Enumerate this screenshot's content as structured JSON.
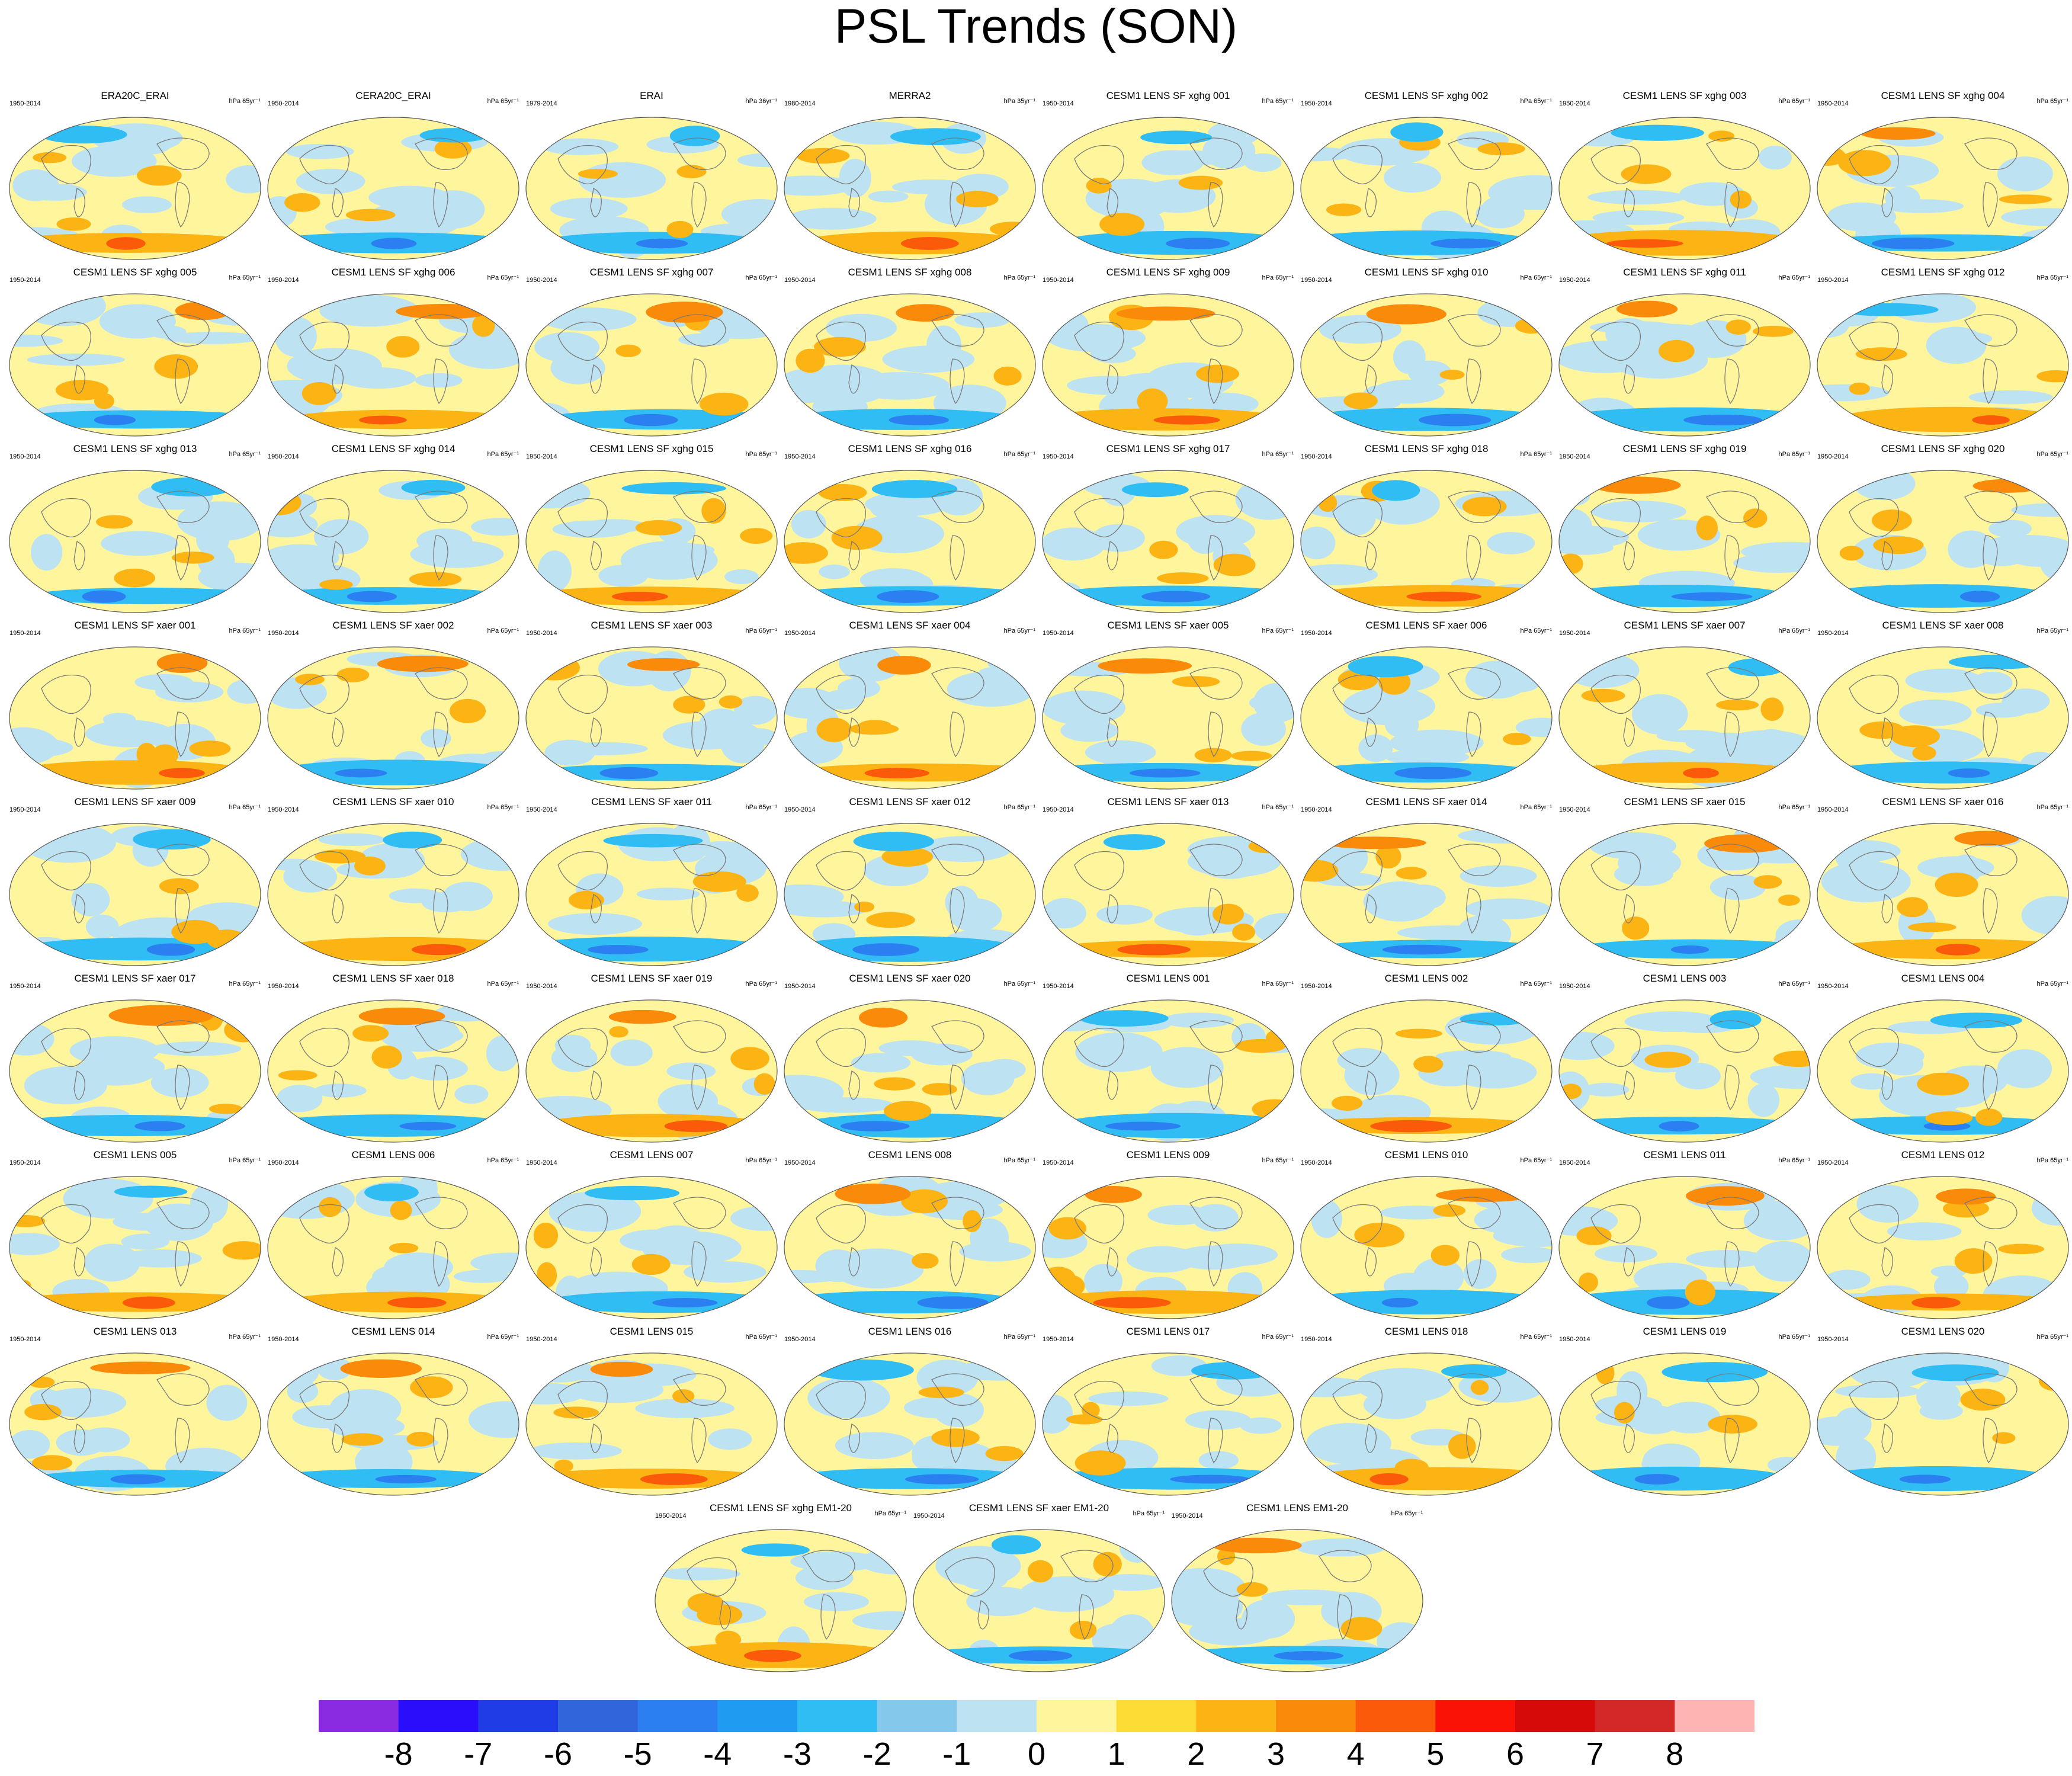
{
  "title": "PSL Trends (SON)",
  "chart_data": {
    "type": "heatmap",
    "title": "PSL Trends (SON)",
    "description_fields": [
      "name",
      "period",
      "units"
    ],
    "colorbar": {
      "labels": [
        "-8",
        "-7",
        "-6",
        "-5",
        "-4",
        "-3",
        "-2",
        "-1",
        "0",
        "1",
        "2",
        "3",
        "4",
        "5",
        "6",
        "7",
        "8"
      ],
      "colors": [
        "#8a2be2",
        "#2a0dfa",
        "#1f3ce6",
        "#3165dc",
        "#2b7ff0",
        "#1f9cf2",
        "#2fbdf3",
        "#84c9ec",
        "#bde2f2",
        "#fff59d",
        "#fcdc35",
        "#fbb414",
        "#fa8a0a",
        "#fa5a0a",
        "#fa1206",
        "#d70a0a",
        "#d32828",
        "#ffb4b4"
      ]
    },
    "panels": [
      {
        "name": "ERA20C_ERAI",
        "period": "1950-2014",
        "units": "hPa 65yr⁻¹"
      },
      {
        "name": "CERA20C_ERAI",
        "period": "1950-2014",
        "units": "hPa 65yr⁻¹"
      },
      {
        "name": "ERAI",
        "period": "1979-2014",
        "units": "hPa 36yr⁻¹"
      },
      {
        "name": "MERRA2",
        "period": "1980-2014",
        "units": "hPa 35yr⁻¹"
      },
      {
        "name": "CESM1 LENS SF xghg 001",
        "period": "1950-2014",
        "units": "hPa 65yr⁻¹"
      },
      {
        "name": "CESM1 LENS SF xghg 002",
        "period": "1950-2014",
        "units": "hPa 65yr⁻¹"
      },
      {
        "name": "CESM1 LENS SF xghg 003",
        "period": "1950-2014",
        "units": "hPa 65yr⁻¹"
      },
      {
        "name": "CESM1 LENS SF xghg 004",
        "period": "1950-2014",
        "units": "hPa 65yr⁻¹"
      },
      {
        "name": "CESM1 LENS SF xghg 005",
        "period": "1950-2014",
        "units": "hPa 65yr⁻¹"
      },
      {
        "name": "CESM1 LENS SF xghg 006",
        "period": "1950-2014",
        "units": "hPa 65yr⁻¹"
      },
      {
        "name": "CESM1 LENS SF xghg 007",
        "period": "1950-2014",
        "units": "hPa 65yr⁻¹"
      },
      {
        "name": "CESM1 LENS SF xghg 008",
        "period": "1950-2014",
        "units": "hPa 65yr⁻¹"
      },
      {
        "name": "CESM1 LENS SF xghg 009",
        "period": "1950-2014",
        "units": "hPa 65yr⁻¹"
      },
      {
        "name": "CESM1 LENS SF xghg 010",
        "period": "1950-2014",
        "units": "hPa 65yr⁻¹"
      },
      {
        "name": "CESM1 LENS SF xghg 011",
        "period": "1950-2014",
        "units": "hPa 65yr⁻¹"
      },
      {
        "name": "CESM1 LENS SF xghg 012",
        "period": "1950-2014",
        "units": "hPa 65yr⁻¹"
      },
      {
        "name": "CESM1 LENS SF xghg 013",
        "period": "1950-2014",
        "units": "hPa 65yr⁻¹"
      },
      {
        "name": "CESM1 LENS SF xghg 014",
        "period": "1950-2014",
        "units": "hPa 65yr⁻¹"
      },
      {
        "name": "CESM1 LENS SF xghg 015",
        "period": "1950-2014",
        "units": "hPa 65yr⁻¹"
      },
      {
        "name": "CESM1 LENS SF xghg 016",
        "period": "1950-2014",
        "units": "hPa 65yr⁻¹"
      },
      {
        "name": "CESM1 LENS SF xghg 017",
        "period": "1950-2014",
        "units": "hPa 65yr⁻¹"
      },
      {
        "name": "CESM1 LENS SF xghg 018",
        "period": "1950-2014",
        "units": "hPa 65yr⁻¹"
      },
      {
        "name": "CESM1 LENS SF xghg 019",
        "period": "1950-2014",
        "units": "hPa 65yr⁻¹"
      },
      {
        "name": "CESM1 LENS SF xghg 020",
        "period": "1950-2014",
        "units": "hPa 65yr⁻¹"
      },
      {
        "name": "CESM1 LENS SF xaer 001",
        "period": "1950-2014",
        "units": "hPa 65yr⁻¹"
      },
      {
        "name": "CESM1 LENS SF xaer 002",
        "period": "1950-2014",
        "units": "hPa 65yr⁻¹"
      },
      {
        "name": "CESM1 LENS SF xaer 003",
        "period": "1950-2014",
        "units": "hPa 65yr⁻¹"
      },
      {
        "name": "CESM1 LENS SF xaer 004",
        "period": "1950-2014",
        "units": "hPa 65yr⁻¹"
      },
      {
        "name": "CESM1 LENS SF xaer 005",
        "period": "1950-2014",
        "units": "hPa 65yr⁻¹"
      },
      {
        "name": "CESM1 LENS SF xaer 006",
        "period": "1950-2014",
        "units": "hPa 65yr⁻¹"
      },
      {
        "name": "CESM1 LENS SF xaer 007",
        "period": "1950-2014",
        "units": "hPa 65yr⁻¹"
      },
      {
        "name": "CESM1 LENS SF xaer 008",
        "period": "1950-2014",
        "units": "hPa 65yr⁻¹"
      },
      {
        "name": "CESM1 LENS SF xaer 009",
        "period": "1950-2014",
        "units": "hPa 65yr⁻¹"
      },
      {
        "name": "CESM1 LENS SF xaer 010",
        "period": "1950-2014",
        "units": "hPa 65yr⁻¹"
      },
      {
        "name": "CESM1 LENS SF xaer 011",
        "period": "1950-2014",
        "units": "hPa 65yr⁻¹"
      },
      {
        "name": "CESM1 LENS SF xaer 012",
        "period": "1950-2014",
        "units": "hPa 65yr⁻¹"
      },
      {
        "name": "CESM1 LENS SF xaer 013",
        "period": "1950-2014",
        "units": "hPa 65yr⁻¹"
      },
      {
        "name": "CESM1 LENS SF xaer 014",
        "period": "1950-2014",
        "units": "hPa 65yr⁻¹"
      },
      {
        "name": "CESM1 LENS SF xaer 015",
        "period": "1950-2014",
        "units": "hPa 65yr⁻¹"
      },
      {
        "name": "CESM1 LENS SF xaer 016",
        "period": "1950-2014",
        "units": "hPa 65yr⁻¹"
      },
      {
        "name": "CESM1 LENS SF xaer 017",
        "period": "1950-2014",
        "units": "hPa 65yr⁻¹"
      },
      {
        "name": "CESM1 LENS SF xaer 018",
        "period": "1950-2014",
        "units": "hPa 65yr⁻¹"
      },
      {
        "name": "CESM1 LENS SF xaer 019",
        "period": "1950-2014",
        "units": "hPa 65yr⁻¹"
      },
      {
        "name": "CESM1 LENS SF xaer 020",
        "period": "1950-2014",
        "units": "hPa 65yr⁻¹"
      },
      {
        "name": "CESM1 LENS 001",
        "period": "1950-2014",
        "units": "hPa 65yr⁻¹"
      },
      {
        "name": "CESM1 LENS 002",
        "period": "1950-2014",
        "units": "hPa 65yr⁻¹"
      },
      {
        "name": "CESM1 LENS 003",
        "period": "1950-2014",
        "units": "hPa 65yr⁻¹"
      },
      {
        "name": "CESM1 LENS 004",
        "period": "1950-2014",
        "units": "hPa 65yr⁻¹"
      },
      {
        "name": "CESM1 LENS 005",
        "period": "1950-2014",
        "units": "hPa 65yr⁻¹"
      },
      {
        "name": "CESM1 LENS 006",
        "period": "1950-2014",
        "units": "hPa 65yr⁻¹"
      },
      {
        "name": "CESM1 LENS 007",
        "period": "1950-2014",
        "units": "hPa 65yr⁻¹"
      },
      {
        "name": "CESM1 LENS 008",
        "period": "1950-2014",
        "units": "hPa 65yr⁻¹"
      },
      {
        "name": "CESM1 LENS 009",
        "period": "1950-2014",
        "units": "hPa 65yr⁻¹"
      },
      {
        "name": "CESM1 LENS 010",
        "period": "1950-2014",
        "units": "hPa 65yr⁻¹"
      },
      {
        "name": "CESM1 LENS 011",
        "period": "1950-2014",
        "units": "hPa 65yr⁻¹"
      },
      {
        "name": "CESM1 LENS 012",
        "period": "1950-2014",
        "units": "hPa 65yr⁻¹"
      },
      {
        "name": "CESM1 LENS 013",
        "period": "1950-2014",
        "units": "hPa 65yr⁻¹"
      },
      {
        "name": "CESM1 LENS 014",
        "period": "1950-2014",
        "units": "hPa 65yr⁻¹"
      },
      {
        "name": "CESM1 LENS 015",
        "period": "1950-2014",
        "units": "hPa 65yr⁻¹"
      },
      {
        "name": "CESM1 LENS 016",
        "period": "1950-2014",
        "units": "hPa 65yr⁻¹"
      },
      {
        "name": "CESM1 LENS 017",
        "period": "1950-2014",
        "units": "hPa 65yr⁻¹"
      },
      {
        "name": "CESM1 LENS 018",
        "period": "1950-2014",
        "units": "hPa 65yr⁻¹"
      },
      {
        "name": "CESM1 LENS 019",
        "period": "1950-2014",
        "units": "hPa 65yr⁻¹"
      },
      {
        "name": "CESM1 LENS 020",
        "period": "1950-2014",
        "units": "hPa 65yr⁻¹"
      },
      {
        "name": "CESM1 LENS SF xghg EM1-20",
        "period": "1950-2014",
        "units": "hPa 65yr⁻¹"
      },
      {
        "name": "CESM1 LENS SF xaer EM1-20",
        "period": "1950-2014",
        "units": "hPa 65yr⁻¹"
      },
      {
        "name": "CESM1 LENS EM1-20",
        "period": "1950-2014",
        "units": "hPa 65yr⁻¹"
      }
    ]
  }
}
